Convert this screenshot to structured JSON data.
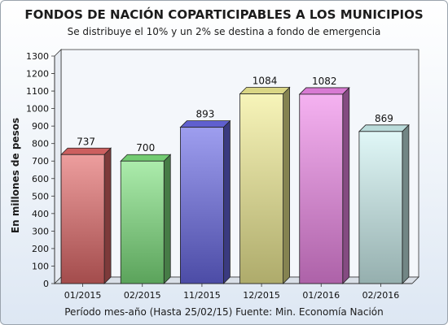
{
  "chart_data": {
    "type": "bar",
    "title": "FONDOS DE NACIÓN COPARTICIPABLES A LOS MUNICIPIOS",
    "subtitle": "Se distribuye el 10% y un 2% se destina a fondo de emergencia",
    "xlabel": "Período mes-año (Hasta 25/02/15) Fuente: Min. Economía Nación",
    "ylabel": "En millones de pesos",
    "categories": [
      "01/2015",
      "02/2015",
      "11/2015",
      "12/2015",
      "01/2016",
      "02/2016"
    ],
    "values": [
      737,
      700,
      893,
      1084,
      1082,
      869
    ],
    "ylim": [
      0,
      1300
    ],
    "yticks": [
      0,
      100,
      200,
      300,
      400,
      500,
      600,
      700,
      800,
      900,
      1000,
      1100,
      1200,
      1300
    ],
    "grid": false,
    "three_d": true,
    "colors": [
      "#e36a6a",
      "#7fe27f",
      "#6a6ae6",
      "#f2ee94",
      "#f088ea",
      "#cff3f2"
    ]
  }
}
